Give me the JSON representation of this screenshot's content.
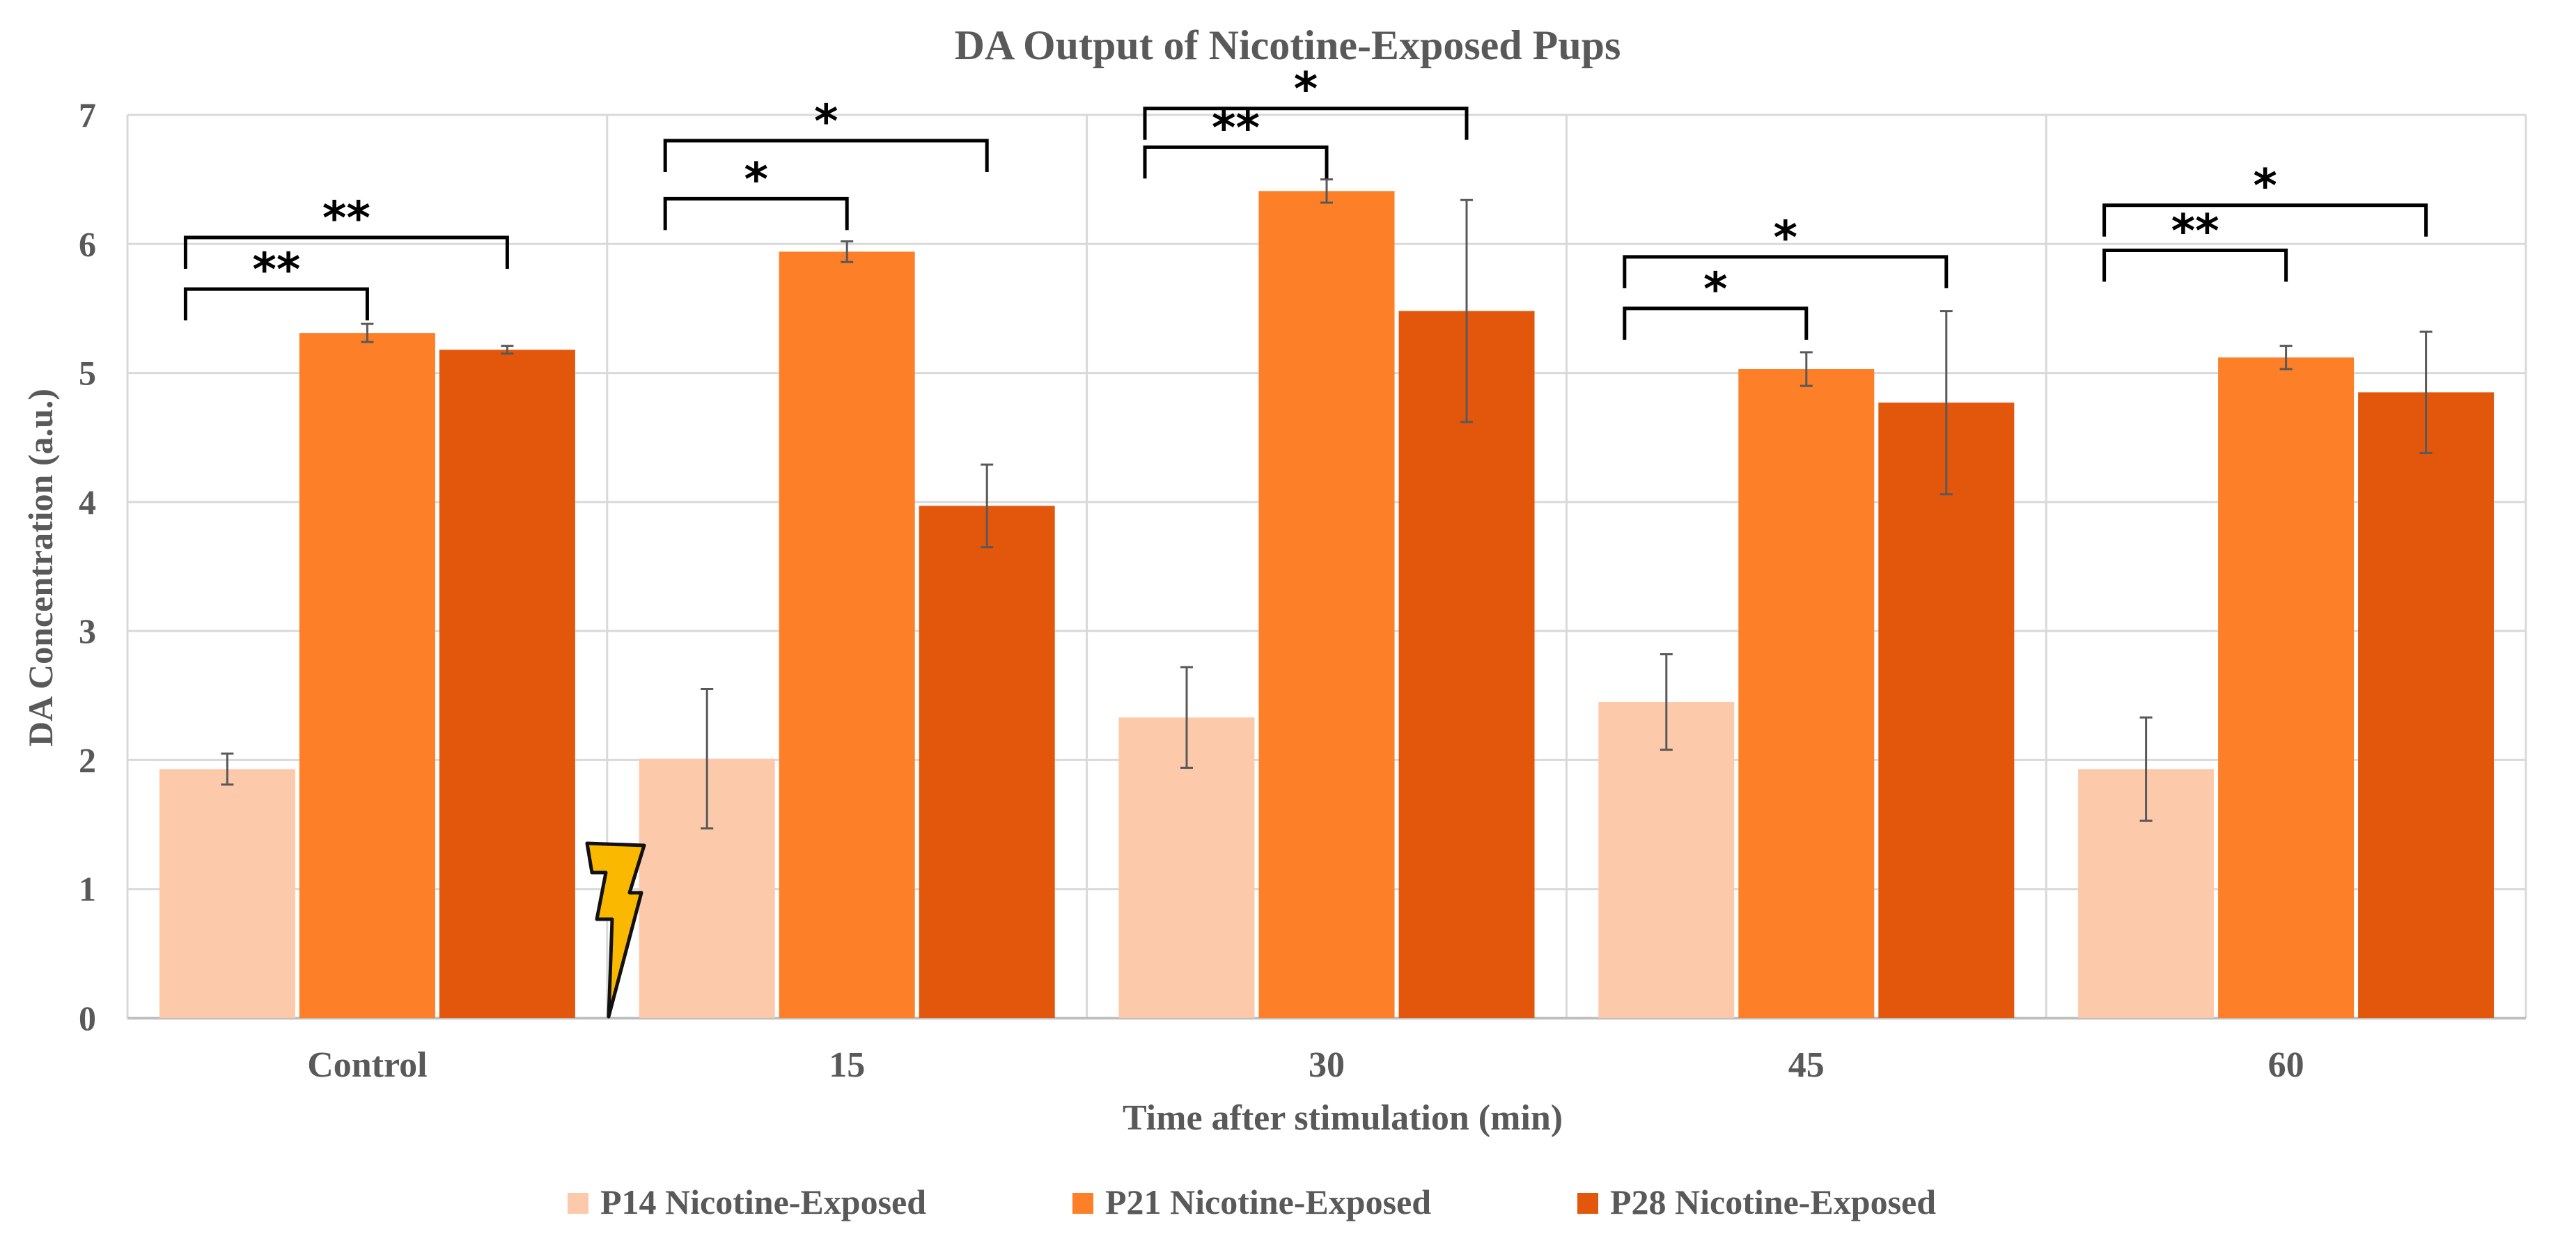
{
  "chart_data": {
    "type": "bar",
    "title": "DA Output of Nicotine-Exposed Pups",
    "xlabel": "Time after stimulation (min)",
    "ylabel": "DA Concentration (a.u.)",
    "ylim": [
      0,
      7
    ],
    "yticks": [
      "0",
      "1",
      "2",
      "3",
      "4",
      "5",
      "6",
      "7"
    ],
    "grid": true,
    "legend_position": "bottom",
    "categories": [
      "Control",
      "15",
      "30",
      "45",
      "60"
    ],
    "series": [
      {
        "name": "P14 Nicotine-Exposed",
        "color": "#fccaaa",
        "values": [
          1.93,
          2.01,
          2.33,
          2.45,
          1.93
        ],
        "errors": [
          0.12,
          0.54,
          0.39,
          0.37,
          0.4
        ]
      },
      {
        "name": "P21 Nicotine-Exposed",
        "color": "#fd7f27",
        "values": [
          5.31,
          5.94,
          6.41,
          5.03,
          5.12
        ],
        "errors": [
          0.07,
          0.08,
          0.09,
          0.13,
          0.09
        ]
      },
      {
        "name": "P28 Nicotine-Exposed",
        "color": "#e2570c",
        "values": [
          5.18,
          3.97,
          5.48,
          4.77,
          4.85
        ],
        "errors": [
          0.03,
          0.32,
          0.86,
          0.71,
          0.47
        ]
      }
    ],
    "significance": [
      {
        "category": 0,
        "from_series": 0,
        "to_series": 1,
        "label": "**",
        "level": 1,
        "top": 5.65
      },
      {
        "category": 0,
        "from_series": 0,
        "to_series": 2,
        "label": "**",
        "level": 2,
        "top": 6.05
      },
      {
        "category": 1,
        "from_series": 0,
        "to_series": 1,
        "label": "*",
        "level": 1,
        "top": 6.35
      },
      {
        "category": 1,
        "from_series": 0,
        "to_series": 2,
        "label": "*",
        "level": 2,
        "top": 6.8
      },
      {
        "category": 2,
        "from_series": 0,
        "to_series": 1,
        "label": "**",
        "level": 1,
        "top": 6.75
      },
      {
        "category": 2,
        "from_series": 0,
        "to_series": 2,
        "label": "*",
        "level": 2,
        "top": 7.05
      },
      {
        "category": 3,
        "from_series": 0,
        "to_series": 1,
        "label": "*",
        "level": 1,
        "top": 5.5
      },
      {
        "category": 3,
        "from_series": 0,
        "to_series": 2,
        "label": "*",
        "level": 2,
        "top": 5.9
      },
      {
        "category": 4,
        "from_series": 0,
        "to_series": 1,
        "label": "**",
        "level": 1,
        "top": 5.95
      },
      {
        "category": 4,
        "from_series": 0,
        "to_series": 2,
        "label": "*",
        "level": 2,
        "top": 6.3
      }
    ],
    "annotations": [
      {
        "type": "lightning-icon",
        "meaning": "stimulation",
        "between_categories": [
          0,
          1
        ],
        "color": "#fbb800"
      }
    ]
  }
}
